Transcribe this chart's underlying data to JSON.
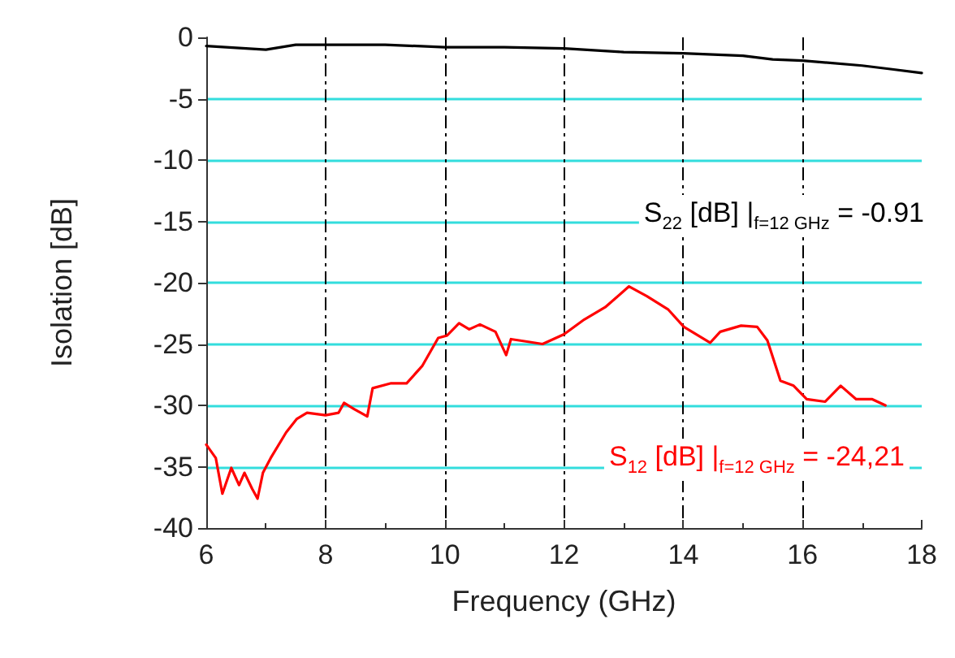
{
  "chart_data": {
    "type": "line",
    "xlabel": "Frequency (GHz)",
    "ylabel": "Isolation [dB]",
    "xlim": [
      6,
      18
    ],
    "xticks": [
      6,
      8,
      10,
      12,
      14,
      16,
      18
    ],
    "ylim": [
      -40,
      0
    ],
    "yticks": [
      -40,
      -35,
      -30,
      -25,
      -20,
      -15,
      -10,
      -5,
      0
    ],
    "grid": true,
    "marker": "none",
    "line_style": "solid",
    "series": [
      {
        "color": "#000000",
        "x": [
          6,
          7,
          7.5,
          8,
          9,
          10,
          11,
          12,
          13,
          14,
          15,
          15.5,
          16,
          17,
          17.5,
          18
        ],
        "values": [
          -0.7,
          -1.0,
          -0.6,
          -0.6,
          -0.6,
          -0.8,
          -0.8,
          -0.9,
          -1.2,
          -1.3,
          -1.5,
          -1.8,
          -1.9,
          -2.3,
          -2.6,
          -2.9
        ]
      },
      {
        "color": "#ff0000",
        "x": [
          6.0,
          6.16,
          6.27,
          6.42,
          6.55,
          6.64,
          6.77,
          6.86,
          6.95,
          7.08,
          7.34,
          7.52,
          7.69,
          8.0,
          8.22,
          8.31,
          8.48,
          8.7,
          8.79,
          9.1,
          9.36,
          9.62,
          9.89,
          10.04,
          10.24,
          10.41,
          10.59,
          10.85,
          11.03,
          11.11,
          11.38,
          11.64,
          12.0,
          12.34,
          12.69,
          13.09,
          13.39,
          13.75,
          14.01,
          14.45,
          14.62,
          14.97,
          15.24,
          15.41,
          15.63,
          15.85,
          16.07,
          16.38,
          16.64,
          16.9,
          17.17,
          17.39
        ],
        "values": [
          -33.2,
          -34.3,
          -37.2,
          -35.1,
          -36.5,
          -35.5,
          -36.8,
          -37.6,
          -35.5,
          -34.3,
          -32.2,
          -31.1,
          -30.6,
          -30.8,
          -30.6,
          -29.8,
          -30.3,
          -30.9,
          -28.6,
          -28.2,
          -28.2,
          -26.8,
          -24.5,
          -24.3,
          -23.3,
          -23.8,
          -23.4,
          -24.0,
          -25.9,
          -24.6,
          -24.8,
          -25.0,
          -24.2,
          -23.0,
          -22.0,
          -20.3,
          -21.1,
          -22.2,
          -23.6,
          -24.9,
          -24.0,
          -23.5,
          -23.6,
          -24.7,
          -28.0,
          -28.4,
          -29.5,
          -29.7,
          -28.4,
          -29.5,
          -29.5,
          -30.0
        ]
      }
    ],
    "annotations": [
      "S$_{22}$ [dB] |$_{f=12 GHz}$ = -0.91",
      "S$_{12}$ [dB] |$_{f=12 GHz}$ = -24,21"
    ]
  }
}
